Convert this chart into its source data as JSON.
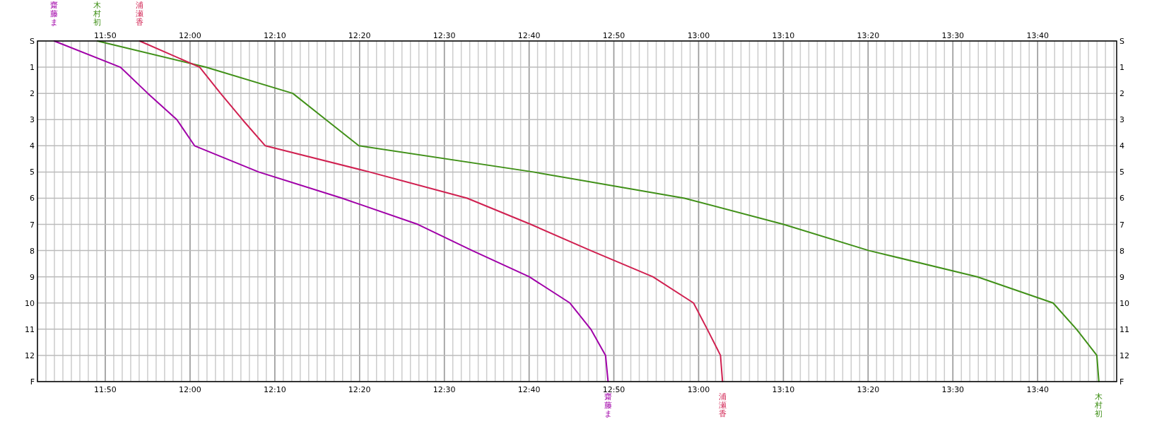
{
  "chart_data": {
    "type": "line",
    "xlim": [
      11.7,
      13.822
    ],
    "ylim": [
      13,
      0
    ],
    "y2lim": [
      13,
      0
    ],
    "x2lim": [
      11.7,
      13.822
    ],
    "xticks": [
      {
        "value": 11.8333,
        "label": "11:50"
      },
      {
        "value": 12,
        "label": "12:00"
      },
      {
        "value": 12.1667,
        "label": "12:10"
      },
      {
        "value": 12.3333,
        "label": "12:20"
      },
      {
        "value": 12.5,
        "label": "12:30"
      },
      {
        "value": 12.6667,
        "label": "12:40"
      },
      {
        "value": 12.8333,
        "label": "12:50"
      },
      {
        "value": 13,
        "label": "13:00"
      },
      {
        "value": 13.1667,
        "label": "13:10"
      },
      {
        "value": 13.3333,
        "label": "13:20"
      },
      {
        "value": 13.5,
        "label": "13:30"
      },
      {
        "value": 13.6667,
        "label": "13:40"
      }
    ],
    "x2ticks": [
      {
        "value": 11.8333,
        "label": "11:50"
      },
      {
        "value": 12,
        "label": "12:00"
      },
      {
        "value": 12.1667,
        "label": "12:10"
      },
      {
        "value": 12.3333,
        "label": "12:20"
      },
      {
        "value": 12.5,
        "label": "12:30"
      },
      {
        "value": 12.6667,
        "label": "12:40"
      },
      {
        "value": 12.8333,
        "label": "12:50"
      },
      {
        "value": 13,
        "label": "13:00"
      },
      {
        "value": 13.1667,
        "label": "13:10"
      },
      {
        "value": 13.3333,
        "label": "13:20"
      },
      {
        "value": 13.5,
        "label": "13:30"
      },
      {
        "value": 13.6667,
        "label": "13:40"
      }
    ],
    "yticks": [
      {
        "value": 0,
        "label": "S"
      },
      1,
      2,
      3,
      4,
      5,
      6,
      7,
      8,
      9,
      10,
      11,
      12,
      {
        "value": 13,
        "label": "F"
      }
    ],
    "y2ticks": [
      {
        "value": 0,
        "label": "S"
      },
      1,
      2,
      3,
      4,
      5,
      6,
      7,
      8,
      9,
      10,
      11,
      12,
      {
        "value": 13,
        "label": "F"
      }
    ],
    "grid": true,
    "marker": "none",
    "line_style": "solid",
    "series": [
      {
        "name": "齋藤ま",
        "color": "#a000a8",
        "x": [
          11.733,
          11.863,
          11.917,
          11.974,
          12.009,
          12.135,
          12.299,
          12.448,
          12.555,
          12.667,
          12.747,
          12.788,
          12.817,
          12.822
        ],
        "values": [
          0,
          1,
          2,
          3,
          4,
          5,
          6,
          7,
          8,
          9,
          10,
          11,
          12,
          13
        ]
      },
      {
        "name": "木村初",
        "color": "#409018",
        "x": [
          11.818,
          12.031,
          12.202,
          12.267,
          12.332,
          12.675,
          12.972,
          13.167,
          13.335,
          13.548,
          13.697,
          13.743,
          13.783,
          13.787
        ],
        "values": [
          0,
          1,
          2,
          3,
          4,
          5,
          6,
          7,
          8,
          9,
          10,
          11,
          12,
          13
        ]
      },
      {
        "name": "浦瀬香",
        "color": "#d02050",
        "x": [
          11.901,
          12.019,
          12.06,
          12.103,
          12.148,
          12.353,
          12.545,
          12.67,
          12.788,
          12.91,
          12.99,
          13.017,
          13.043,
          13.047
        ],
        "values": [
          0,
          1,
          2,
          3,
          4,
          5,
          6,
          7,
          8,
          9,
          10,
          11,
          12,
          13
        ]
      }
    ]
  }
}
